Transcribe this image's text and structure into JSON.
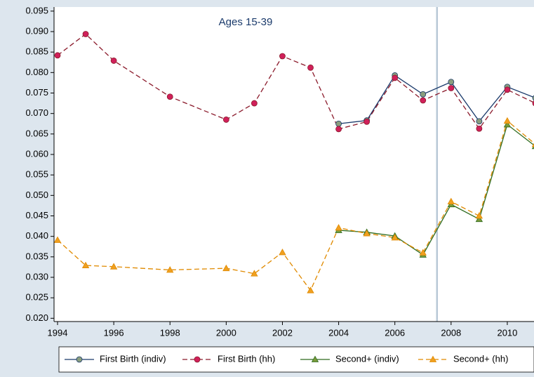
{
  "chart_data": {
    "type": "line",
    "annotation": "Ages 15-39",
    "x": [
      1994,
      1995,
      1996,
      1998,
      2000,
      2001,
      2002,
      2003,
      2004,
      2005,
      2006,
      2007,
      2008,
      2009,
      2010,
      2011
    ],
    "series": [
      {
        "name": "First Birth (indiv)",
        "color": "#1a3a6b",
        "marker_color": "#8a9e7e",
        "marker": "circle",
        "dash": false,
        "values": [
          null,
          null,
          null,
          null,
          null,
          null,
          null,
          null,
          0.0675,
          0.0683,
          0.0793,
          0.0747,
          0.0777,
          0.0681,
          0.0765,
          0.0738
        ]
      },
      {
        "name": "First Birth (hh)",
        "color": "#8b1a2b",
        "marker_color": "#d0205a",
        "marker": "circle",
        "dash": true,
        "values": [
          0.0842,
          0.0894,
          0.0829,
          0.0741,
          0.0685,
          0.0725,
          0.084,
          0.0812,
          0.0662,
          0.068,
          0.0787,
          0.0732,
          0.0762,
          0.0663,
          0.0758,
          0.0725
        ]
      },
      {
        "name": "Second+ (indiv)",
        "color": "#2e6b1e",
        "marker_color": "#7a9a3a",
        "marker": "triangle",
        "dash": false,
        "values": [
          null,
          null,
          null,
          null,
          null,
          null,
          null,
          null,
          0.0415,
          0.041,
          0.0401,
          0.0355,
          0.0478,
          0.0442,
          0.0673,
          0.062
        ]
      },
      {
        "name": "Second+ (hh)",
        "color": "#e08a00",
        "marker_color": "#f0a020",
        "marker": "triangle",
        "dash": true,
        "values": [
          0.0391,
          0.0329,
          0.0326,
          0.0318,
          0.0322,
          0.0309,
          0.0361,
          0.0268,
          0.0421,
          0.0407,
          0.0397,
          0.036,
          0.0485,
          0.045,
          0.0682,
          0.0625
        ]
      }
    ],
    "vline": 2007.5,
    "xlim": [
      1993.875,
      2010.95
    ],
    "xticks": [
      1994,
      1996,
      1998,
      2000,
      2002,
      2004,
      2006,
      2008,
      2010
    ],
    "ylim": [
      0.0192,
      0.096
    ],
    "yticks": [
      {
        "value": 0.02,
        "label": "0.020"
      },
      {
        "value": 0.025,
        "label": "0.025"
      },
      {
        "value": 0.03,
        "label": "0.030"
      },
      {
        "value": 0.035,
        "label": "0.035"
      },
      {
        "value": 0.04,
        "label": "0.040"
      },
      {
        "value": 0.045,
        "label": "0.045"
      },
      {
        "value": 0.05,
        "label": "0.050"
      },
      {
        "value": 0.055,
        "label": "0.055"
      },
      {
        "value": 0.06,
        "label": "0.060"
      },
      {
        "value": 0.065,
        "label": "0.065"
      },
      {
        "value": 0.07,
        "label": "0.070"
      },
      {
        "value": 0.075,
        "label": "0.075"
      },
      {
        "value": 0.08,
        "label": "0.080"
      },
      {
        "value": 0.085,
        "label": "0.085"
      },
      {
        "value": 0.09,
        "label": "0.090"
      },
      {
        "value": 0.095,
        "label": "0.095"
      }
    ]
  }
}
